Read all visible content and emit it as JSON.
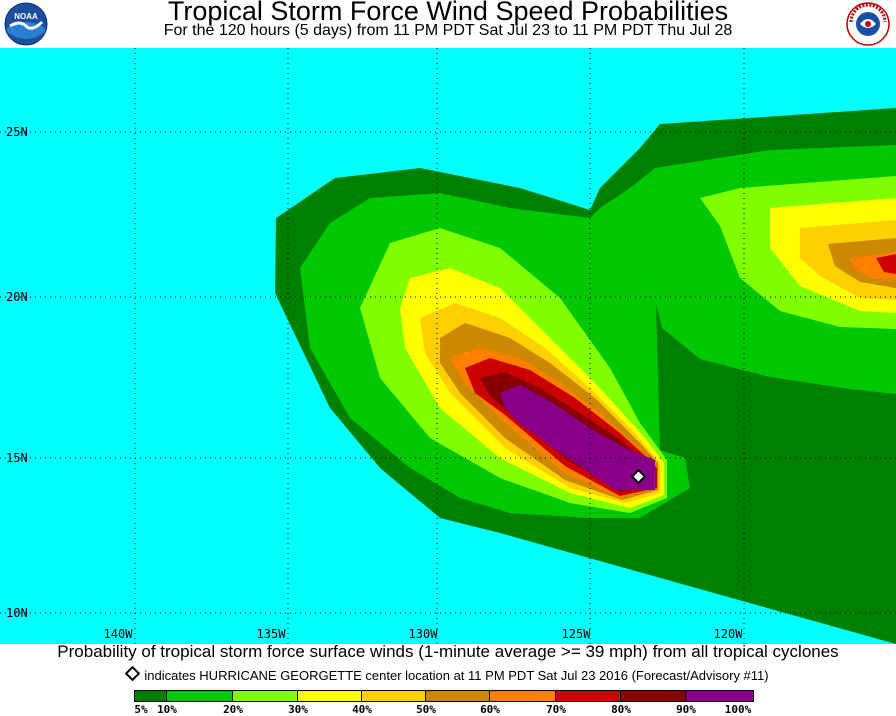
{
  "header": {
    "title": "Tropical Storm Force Wind Speed Probabilities",
    "subtitle": "For the 120 hours (5 days) from 11 PM PDT Sat Jul 23 to 11 PM PDT Thu Jul 28",
    "left_logo_text": "NOAA",
    "right_logo_text": "NATIONAL WEATHER SERVICE"
  },
  "map": {
    "ocean_color": "#00ffff",
    "latitude_labels": [
      "25N",
      "20N",
      "15N",
      "10N"
    ],
    "longitude_labels": [
      "140W",
      "135W",
      "130W",
      "125W",
      "120W"
    ],
    "storm_center": {
      "name": "HURRICANE GEORGETTE",
      "lat": 14.3,
      "lon": 123.4
    }
  },
  "footer": {
    "caption": "Probability of tropical storm force surface winds (1-minute average >= 39 mph) from all tropical cyclones",
    "center_note": "indicates HURRICANE GEORGETTE center location at 11 PM PDT Sat Jul 23 2016 (Forecast/Advisory #11)"
  },
  "legend": {
    "bins": [
      {
        "color": "#008000"
      },
      {
        "color": "#00c800"
      },
      {
        "color": "#80ff00"
      },
      {
        "color": "#ffff00"
      },
      {
        "color": "#ffd000"
      },
      {
        "color": "#cc8800"
      },
      {
        "color": "#ff8000"
      },
      {
        "color": "#cc0000"
      },
      {
        "color": "#880000"
      },
      {
        "color": "#880088"
      }
    ],
    "labels": [
      "5%",
      "10%",
      "20%",
      "30%",
      "40%",
      "50%",
      "60%",
      "70%",
      "80%",
      "90%",
      "100%"
    ]
  }
}
